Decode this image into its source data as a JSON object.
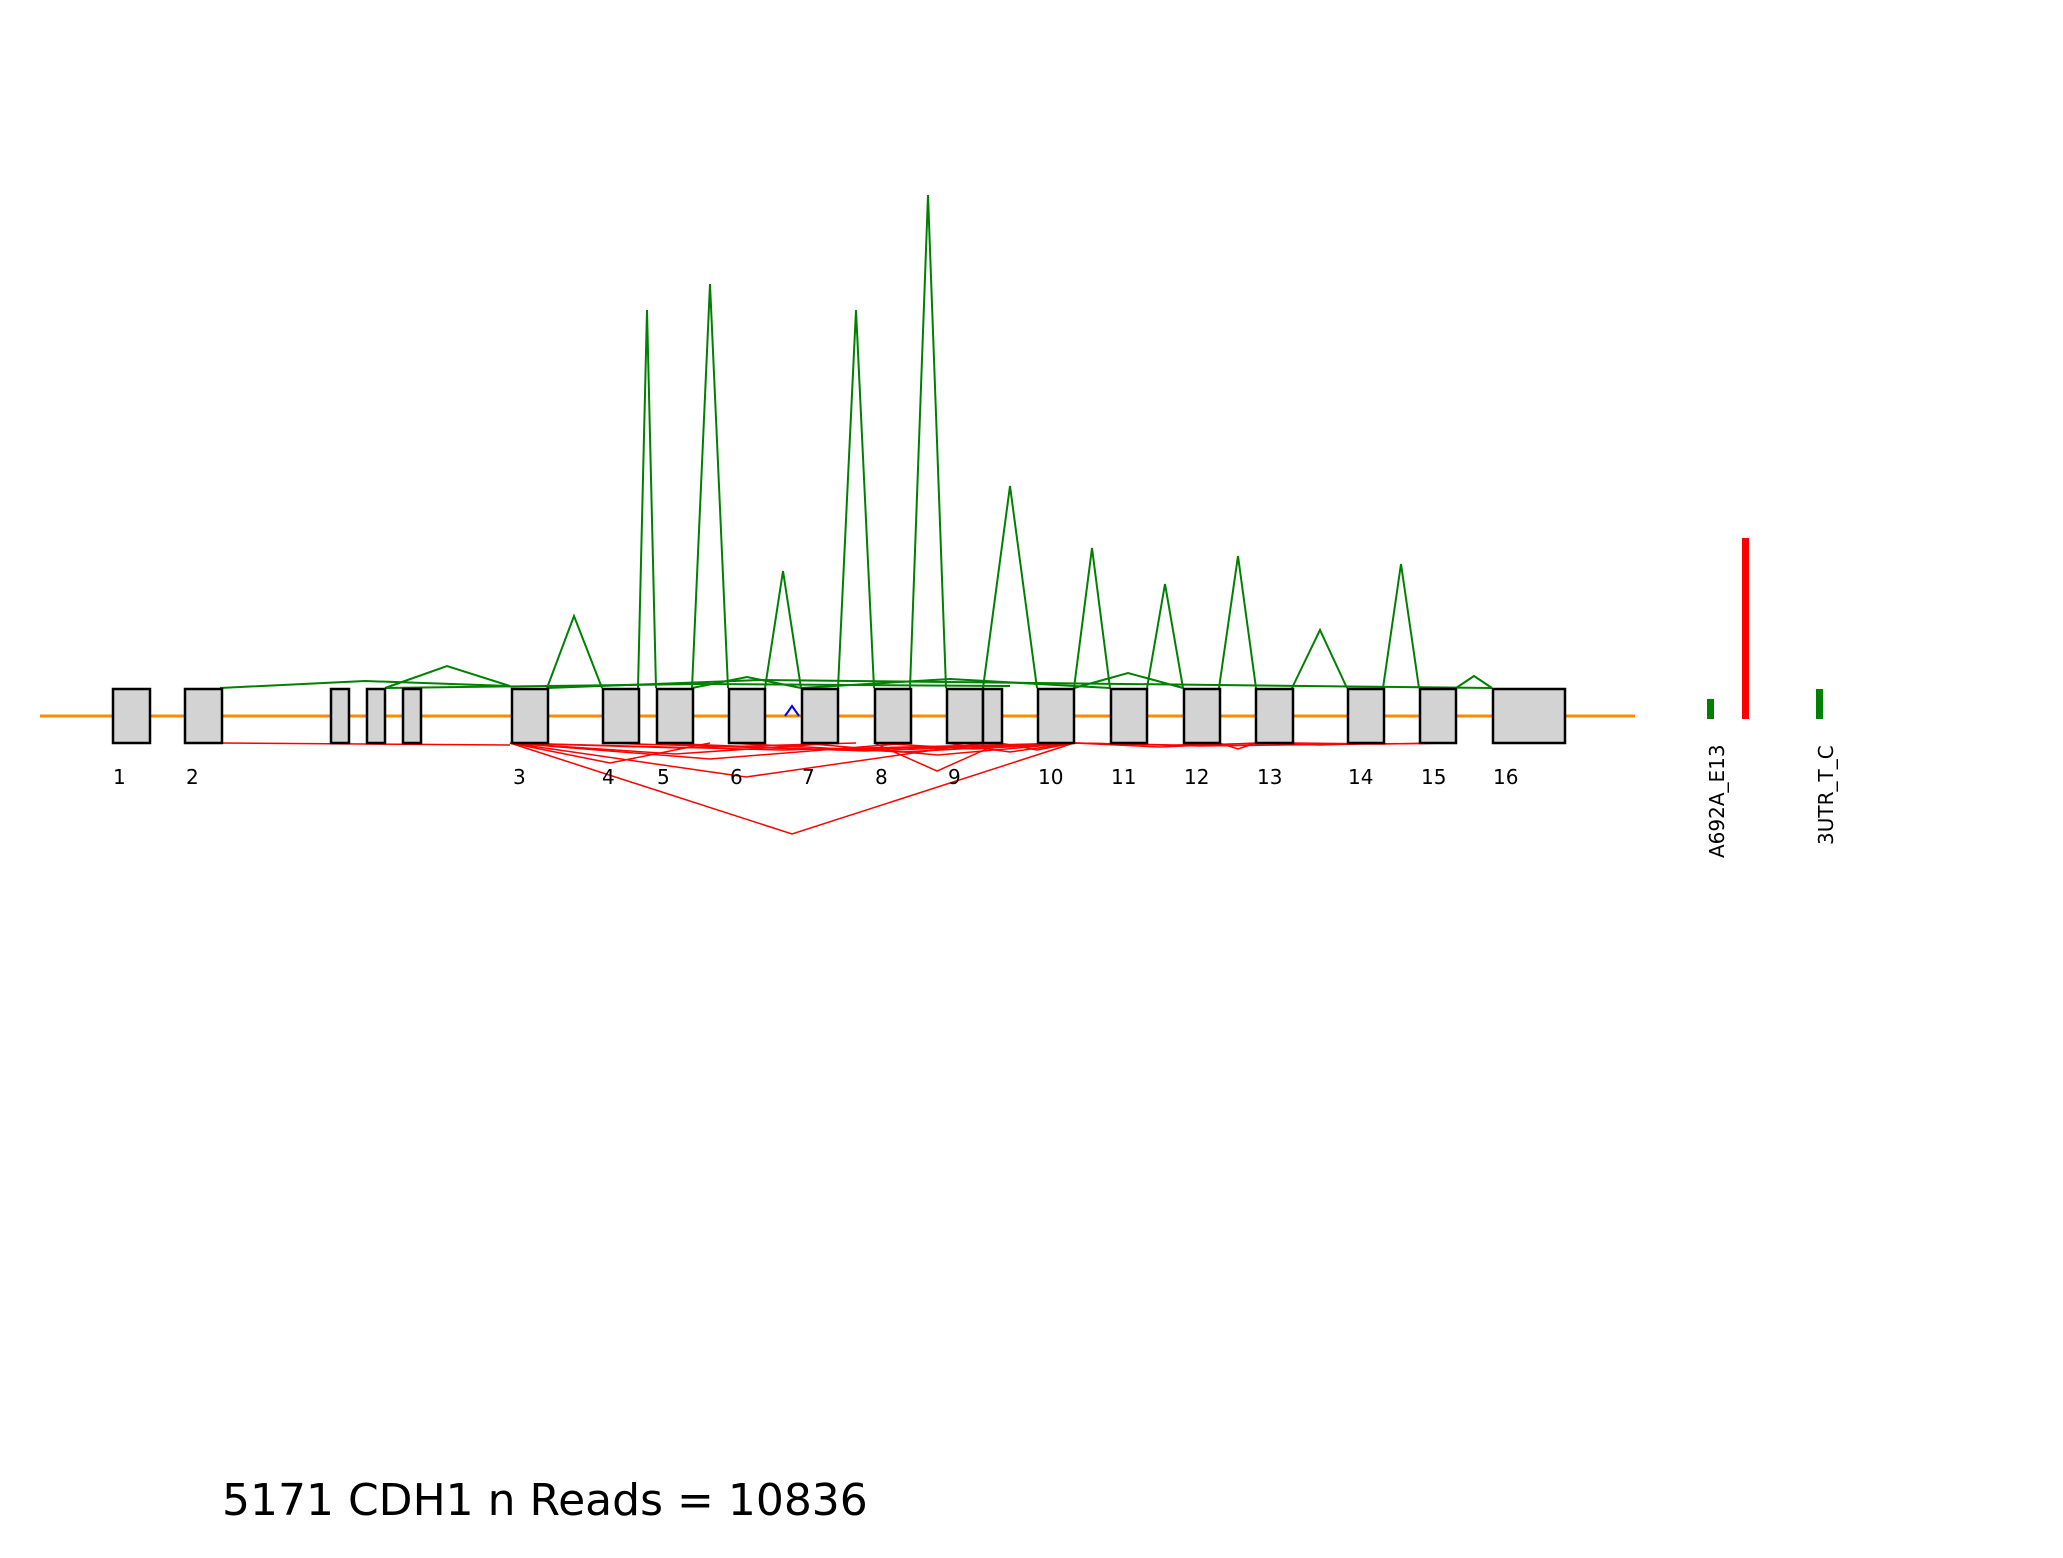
{
  "title": "5171 CDH1 n Reads = 10836",
  "colors": {
    "gene_line": "#ff8c00",
    "exon_fill": "#d3d3d3",
    "exon_stroke": "#000000",
    "junction_up": "#008000",
    "junction_down": "#ff0000",
    "special_junction": "#0000ff"
  },
  "exon_labels": [
    "1",
    "2",
    "3",
    "4",
    "5",
    "6",
    "7",
    "8",
    "9",
    "10",
    "11",
    "12",
    "13",
    "14",
    "15",
    "16"
  ],
  "markers": [
    {
      "label": "A692A_E13",
      "color": "#008000",
      "level": 0.12
    },
    {
      "label": "",
      "color": "#ff0000",
      "level": 1.0
    },
    {
      "label": "3UTR_T_C",
      "color": "#008000",
      "level": 0.17
    }
  ],
  "junction_peaks_up": [
    0.03,
    0.07,
    0.27,
    0.77,
    0.83,
    0.23,
    0.77,
    0.97,
    0.45,
    0.32,
    0.24,
    0.3,
    0.14,
    0.3,
    0.03,
    0.03
  ],
  "junction_peaks_down": [
    0.17,
    0.06,
    0.05,
    0.07,
    0.05,
    0.02
  ]
}
